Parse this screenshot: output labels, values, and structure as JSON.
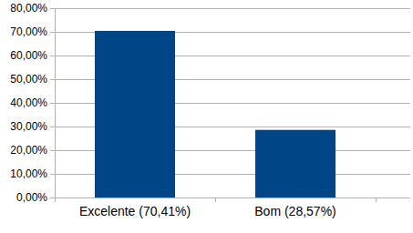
{
  "chart_data": {
    "type": "bar",
    "categories": [
      "Excelente (70,41%)",
      "Bom (28,57%)"
    ],
    "values": [
      70.41,
      28.57
    ],
    "color": "#004586",
    "ylim": [
      0,
      80
    ],
    "yticks": [
      {
        "value": 0,
        "label": "0,00%"
      },
      {
        "value": 10,
        "label": "10,00%"
      },
      {
        "value": 20,
        "label": "20,00%"
      },
      {
        "value": 30,
        "label": "30,00%"
      },
      {
        "value": 40,
        "label": "40,00%"
      },
      {
        "value": 50,
        "label": "50,00%"
      },
      {
        "value": 60,
        "label": "60,00%"
      },
      {
        "value": 70,
        "label": "70,00%"
      },
      {
        "value": 80,
        "label": "80,00%"
      }
    ],
    "grid": true
  }
}
